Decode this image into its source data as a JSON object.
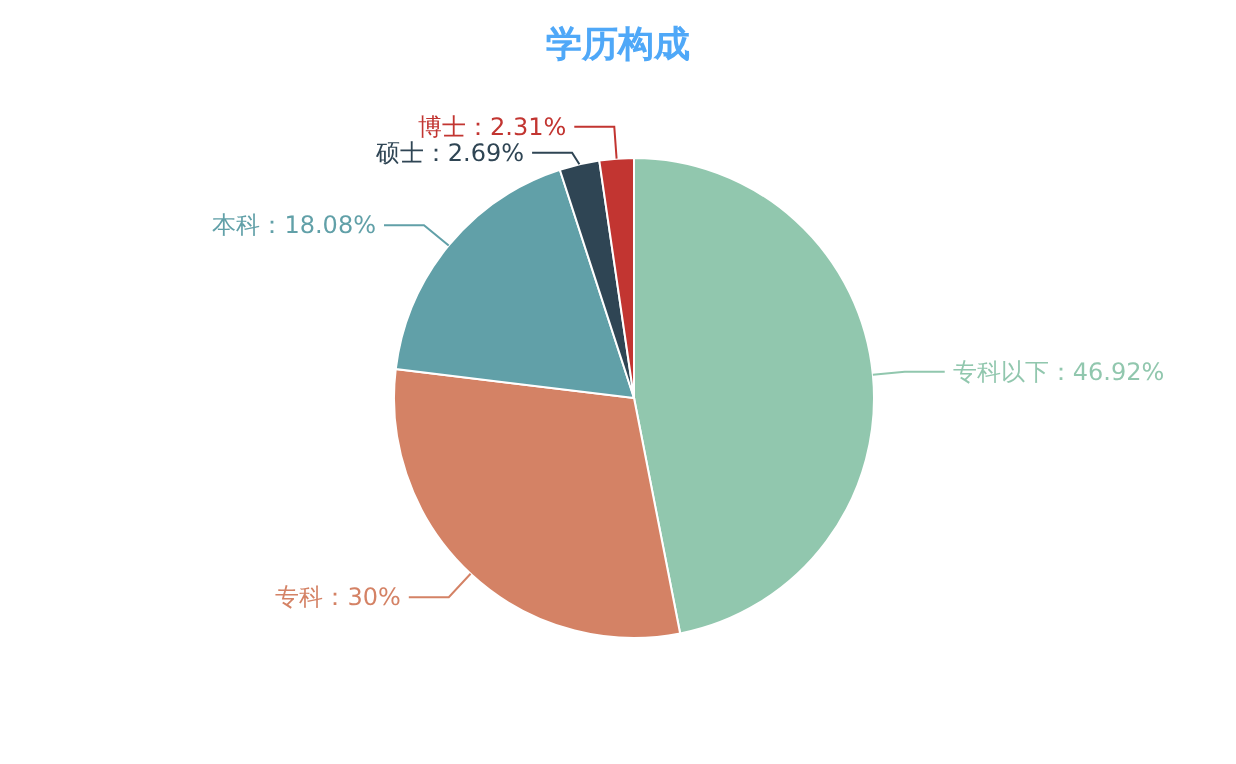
{
  "chart_data": {
    "type": "pie",
    "title": "学历构成",
    "categories": [
      "专科以下",
      "专科",
      "本科",
      "硕士",
      "博士"
    ],
    "values": [
      46.92,
      30,
      18.08,
      2.69,
      2.31
    ],
    "value_labels": [
      "46.92%",
      "30%",
      "18.08%",
      "2.69%",
      "2.31%"
    ],
    "colors": [
      "#91c7ae",
      "#d48265",
      "#61a0a8",
      "#2f4554",
      "#c23531"
    ]
  }
}
